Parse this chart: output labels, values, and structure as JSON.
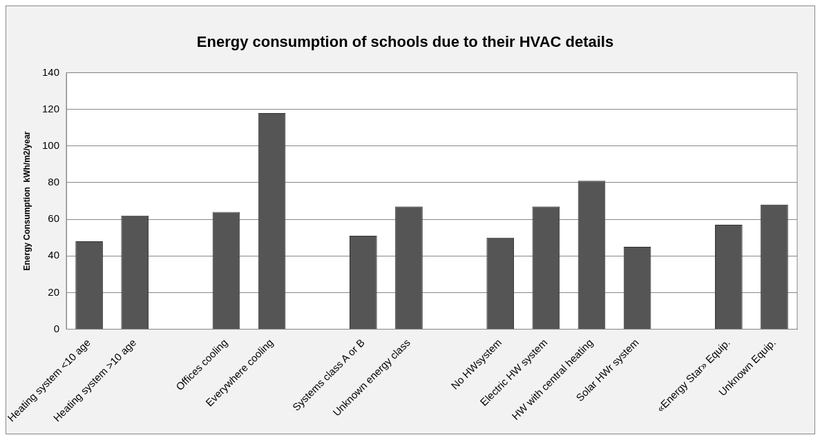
{
  "chart_data": {
    "type": "bar",
    "title": "Energy consumption of schools due to their HVAC details",
    "ylabel": "Energy Consumption  kWh/m2/year",
    "categories": [
      "Heating system <10 age",
      "Heating system >10 age",
      null,
      "Offices cooling",
      "Everywhere cooling",
      null,
      "Systems class A or B",
      "Unknown energy class",
      null,
      "No HWsystem",
      "Electric HW system",
      "HW with central heating",
      "Solar HWr system",
      null,
      "«Energy Star» Equip.",
      "Unknown Equip."
    ],
    "values": [
      48,
      62,
      null,
      64,
      118,
      null,
      51,
      67,
      null,
      50,
      67,
      81,
      45,
      null,
      57,
      68
    ],
    "color": "#555555",
    "ylim": [
      0,
      140
    ],
    "yticks": [
      0,
      20,
      40,
      60,
      80,
      100,
      120,
      140
    ],
    "grid": "y",
    "legend": false
  }
}
